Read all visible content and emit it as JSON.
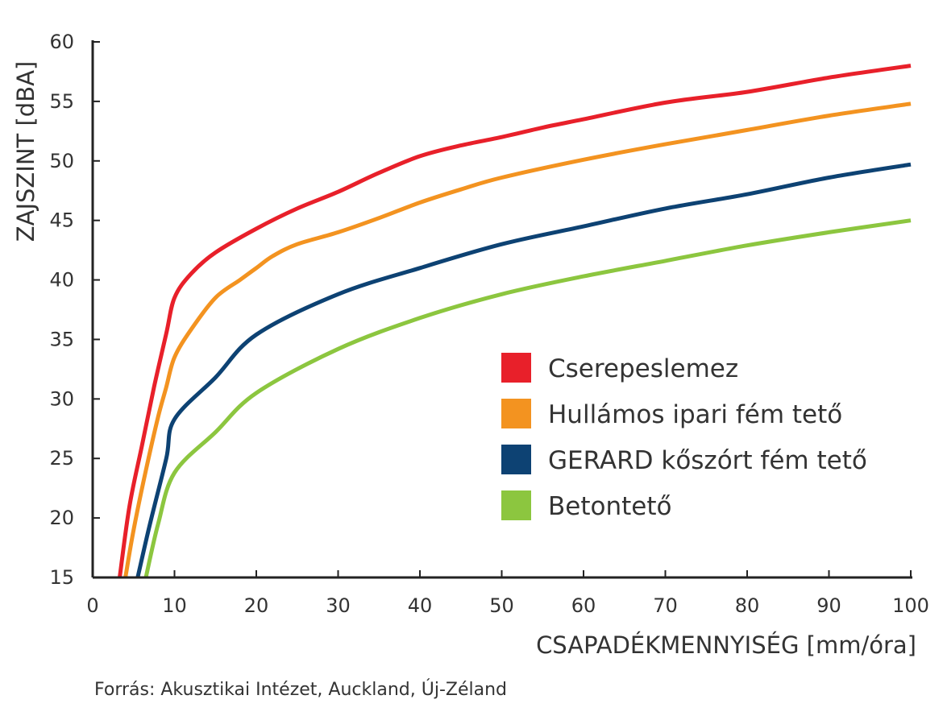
{
  "chart_data": {
    "type": "line",
    "xlabel": "CSAPADÉKMENNYISÉG [mm/óra]",
    "ylabel": "ZAJSZINT [dBA]",
    "xlim": [
      0,
      100
    ],
    "ylim": [
      15,
      60
    ],
    "xticks": [
      0,
      10,
      20,
      30,
      40,
      50,
      60,
      70,
      80,
      90,
      100
    ],
    "yticks": [
      15,
      20,
      25,
      30,
      35,
      40,
      45,
      50,
      55,
      60
    ],
    "legend_position": "center-right",
    "source": "Forrás: Akusztikai Intézet, Auckland, Új-Zéland",
    "series": [
      {
        "name": "Cserepeslemez",
        "color": "#e8202a",
        "x": [
          3.3,
          4.5,
          6,
          7.5,
          9,
          10,
          12,
          15,
          20,
          25,
          30,
          35,
          40,
          45,
          50,
          55,
          60,
          70,
          80,
          90,
          100
        ],
        "y": [
          15,
          21,
          26,
          31,
          35.5,
          38.5,
          40.5,
          42.3,
          44.3,
          46,
          47.4,
          49,
          50.4,
          51.3,
          52,
          52.8,
          53.5,
          54.9,
          55.8,
          57,
          58
        ]
      },
      {
        "name": "Hullámos ipari fém tető",
        "color": "#f39320",
        "x": [
          4,
          5,
          6.5,
          8,
          9,
          10,
          12,
          15,
          18,
          20,
          22,
          25,
          30,
          35,
          40,
          45,
          50,
          60,
          70,
          80,
          90,
          100
        ],
        "y": [
          15,
          19,
          24,
          28.5,
          31,
          33.5,
          35.8,
          38.5,
          40,
          41,
          42,
          43,
          44,
          45.2,
          46.5,
          47.6,
          48.6,
          50.1,
          51.4,
          52.6,
          53.8,
          54.8
        ]
      },
      {
        "name": "GERARD kőszórt fém tető",
        "color": "#0d4273",
        "x": [
          5.5,
          7,
          9,
          10,
          15,
          20,
          30,
          40,
          50,
          60,
          70,
          80,
          90,
          100
        ],
        "y": [
          15,
          19.5,
          25,
          28.3,
          31.8,
          35.4,
          38.8,
          41,
          43,
          44.5,
          46,
          47.2,
          48.6,
          49.7
        ]
      },
      {
        "name": "Betontető",
        "color": "#8cc63f",
        "x": [
          6.5,
          8,
          10,
          15,
          20,
          30,
          40,
          50,
          60,
          70,
          80,
          90,
          100
        ],
        "y": [
          15,
          19.5,
          23.8,
          27.2,
          30.5,
          34.2,
          36.8,
          38.8,
          40.3,
          41.6,
          42.9,
          44,
          45
        ]
      }
    ]
  }
}
